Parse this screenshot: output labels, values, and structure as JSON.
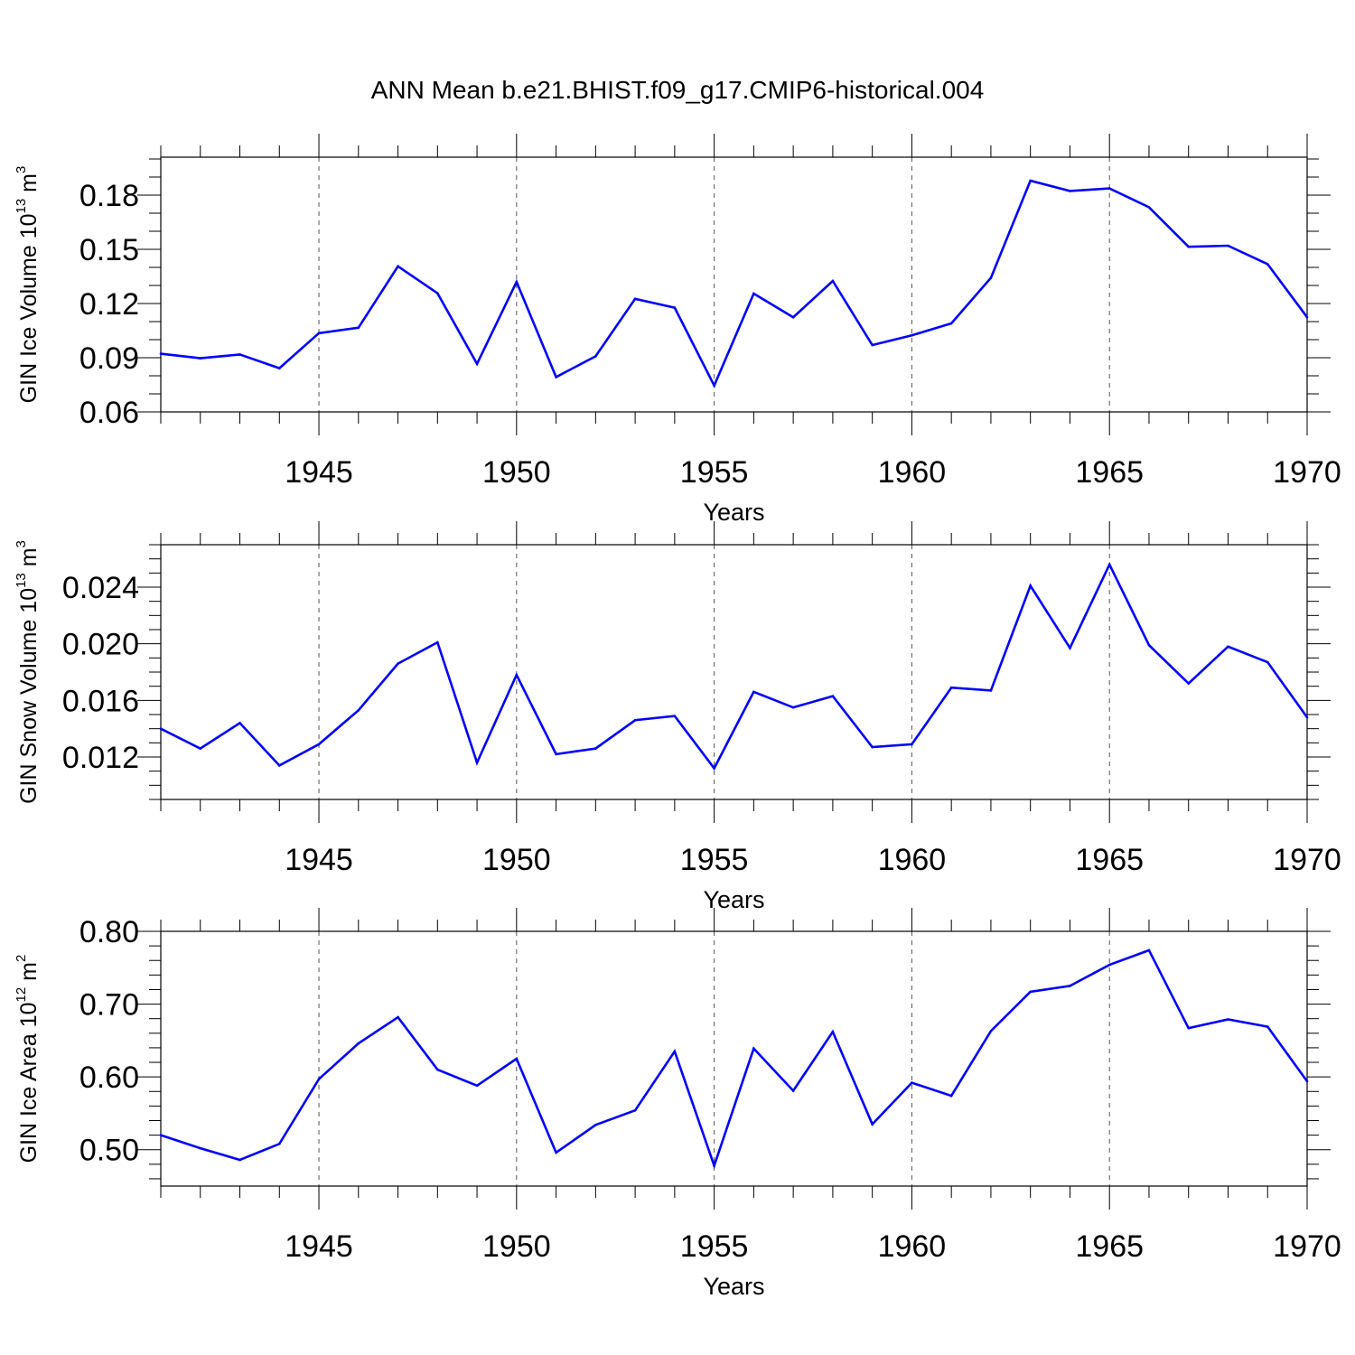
{
  "title": "ANN Mean b.e21.BHIST.f09_g17.CMIP6-historical.004",
  "colors": {
    "line": "#0000ff",
    "axes": "#000000",
    "grid": "#555555"
  },
  "chart_data": [
    {
      "type": "line",
      "ylabel": {
        "text": "GIN Ice Volume 10",
        "exponent": "13",
        "unit": " m",
        "unit_exponent": "3"
      },
      "xlabel": "Years",
      "xlim": [
        1941,
        1970
      ],
      "ylim": [
        0.06,
        0.201
      ],
      "xticks": [
        1945,
        1950,
        1955,
        1960,
        1965,
        1970
      ],
      "yticks": [
        0.06,
        0.09,
        0.12,
        0.15,
        0.18
      ],
      "yticklabels": [
        "0.06",
        "0.09",
        "0.12",
        "0.15",
        "0.18"
      ],
      "yminor": 0.01,
      "grid": "vertical dashed at major x ticks",
      "x": [
        1941,
        1942,
        1943,
        1944,
        1945,
        1946,
        1947,
        1948,
        1949,
        1950,
        1951,
        1952,
        1953,
        1954,
        1955,
        1956,
        1957,
        1958,
        1959,
        1960,
        1961,
        1962,
        1963,
        1964,
        1965,
        1966,
        1967,
        1968,
        1969,
        1970
      ],
      "series": [
        {
          "values": [
            0.0922,
            0.0897,
            0.0918,
            0.0842,
            0.1036,
            0.1066,
            0.1406,
            0.1257,
            0.0866,
            0.132,
            0.0793,
            0.0908,
            0.1226,
            0.1177,
            0.0746,
            0.1255,
            0.1124,
            0.1325,
            0.097,
            0.1024,
            0.109,
            0.1342,
            0.188,
            0.1823,
            0.1837,
            0.1733,
            0.1514,
            0.152,
            0.1418,
            0.1124
          ]
        }
      ]
    },
    {
      "type": "line",
      "ylabel": {
        "text": "GIN Snow Volume 10",
        "exponent": "13",
        "unit": " m",
        "unit_exponent": "3"
      },
      "xlabel": "Years",
      "xlim": [
        1941,
        1970
      ],
      "ylim": [
        0.009,
        0.027
      ],
      "xticks": [
        1945,
        1950,
        1955,
        1960,
        1965,
        1970
      ],
      "yticks": [
        0.012,
        0.016,
        0.02,
        0.024
      ],
      "yticklabels": [
        "0.012",
        "0.016",
        "0.020",
        "0.024"
      ],
      "yminor": 0.001,
      "grid": "vertical dashed at major x ticks",
      "x": [
        1941,
        1942,
        1943,
        1944,
        1945,
        1946,
        1947,
        1948,
        1949,
        1950,
        1951,
        1952,
        1953,
        1954,
        1955,
        1956,
        1957,
        1958,
        1959,
        1960,
        1961,
        1962,
        1963,
        1964,
        1965,
        1966,
        1967,
        1968,
        1969,
        1970
      ],
      "series": [
        {
          "values": [
            0.014,
            0.0126,
            0.0144,
            0.0114,
            0.0129,
            0.0153,
            0.0186,
            0.0201,
            0.0116,
            0.0178,
            0.0122,
            0.0126,
            0.0146,
            0.0149,
            0.0112,
            0.0166,
            0.0155,
            0.0163,
            0.0127,
            0.0129,
            0.0169,
            0.0167,
            0.0241,
            0.0197,
            0.0256,
            0.0199,
            0.0172,
            0.0198,
            0.0187,
            0.0148
          ]
        }
      ]
    },
    {
      "type": "line",
      "ylabel": {
        "text": "GIN Ice Area 10",
        "exponent": "12",
        "unit": " m",
        "unit_exponent": "2"
      },
      "xlabel": "Years",
      "xlim": [
        1941,
        1970
      ],
      "ylim": [
        0.45,
        0.8
      ],
      "xticks": [
        1945,
        1950,
        1955,
        1960,
        1965,
        1970
      ],
      "yticks": [
        0.5,
        0.6,
        0.7,
        0.8
      ],
      "yticklabels": [
        "0.50",
        "0.60",
        "0.70",
        "0.80"
      ],
      "yminor": 0.02,
      "grid": "vertical dashed at major x ticks",
      "x": [
        1941,
        1942,
        1943,
        1944,
        1945,
        1946,
        1947,
        1948,
        1949,
        1950,
        1951,
        1952,
        1953,
        1954,
        1955,
        1956,
        1957,
        1958,
        1959,
        1960,
        1961,
        1962,
        1963,
        1964,
        1965,
        1966,
        1967,
        1968,
        1969,
        1970
      ],
      "series": [
        {
          "values": [
            0.52,
            0.502,
            0.486,
            0.508,
            0.597,
            0.646,
            0.682,
            0.61,
            0.588,
            0.625,
            0.496,
            0.534,
            0.554,
            0.635,
            0.478,
            0.639,
            0.581,
            0.662,
            0.535,
            0.592,
            0.574,
            0.663,
            0.717,
            0.725,
            0.754,
            0.774,
            0.667,
            0.679,
            0.669,
            0.594
          ]
        }
      ]
    }
  ]
}
